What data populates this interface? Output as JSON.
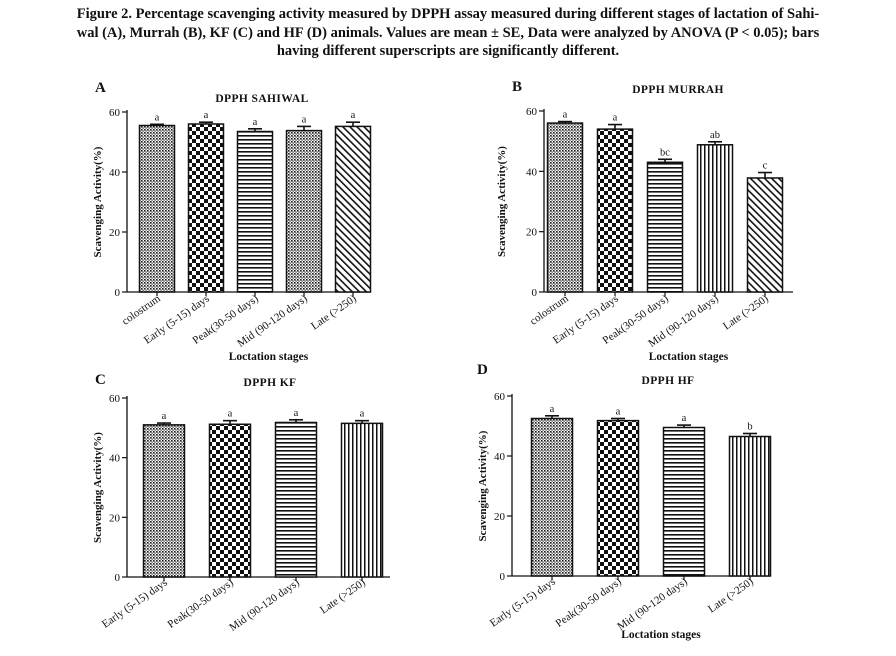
{
  "caption": {
    "line1": "Figure 2. Percentage scavenging activity measured by DPPH assay measured during different stages of lactation of Sahi-",
    "line2": "wal (A), Murrah (B), KF (C) and HF (D) animals. Values are mean ± SE, Data were analyzed by ANOVA (P < 0.05); bars",
    "line3": "having different superscripts are significantly different."
  },
  "chart_data": [
    {
      "panel": "A",
      "type": "bar",
      "title": "DPPH SAHIWAL",
      "xlabel": "Loctation stages",
      "ylabel": "Scavenging Activity(%)",
      "ylim": [
        0,
        60
      ],
      "yticks": [
        "0",
        "20",
        "40",
        "60"
      ],
      "categories": [
        "colostrum",
        "Early (5-15) days",
        "Peak(30-50 days)",
        "Mid (90-120 days)",
        "Late (>250)"
      ],
      "values": [
        55.5,
        56.0,
        53.5,
        53.8,
        55.2
      ],
      "errors": [
        0.4,
        0.6,
        0.9,
        1.4,
        1.4
      ],
      "superscripts": [
        "a",
        "a",
        "a",
        "a",
        "a"
      ],
      "patterns": [
        "dots",
        "checker",
        "hstripe",
        "dots",
        "diag"
      ]
    },
    {
      "panel": "B",
      "type": "bar",
      "title": "DPPH MURRAH",
      "xlabel": "Loctation stages",
      "ylabel": "Scavenging Activity(%)",
      "ylim": [
        0,
        60
      ],
      "yticks": [
        "0",
        "20",
        "40",
        "60"
      ],
      "categories": [
        "colostrum",
        "Early (5-15) days",
        "Peak(30-50 days)",
        "Mid (90-120 days)",
        "Late (>250)"
      ],
      "values": [
        56.0,
        54.0,
        43.0,
        48.8,
        37.8
      ],
      "errors": [
        0.5,
        1.5,
        1.0,
        1.0,
        1.8
      ],
      "superscripts": [
        "a",
        "a",
        "bc",
        "ab",
        "c"
      ],
      "patterns": [
        "dots",
        "checker",
        "hstripe",
        "vstripe",
        "diag"
      ]
    },
    {
      "panel": "C",
      "type": "bar",
      "title": "DPPH KF",
      "xlabel": "",
      "ylabel": "Scavenging Activity(%)",
      "ylim": [
        0,
        60
      ],
      "yticks": [
        "0",
        "20",
        "40",
        "60"
      ],
      "categories": [
        "Early (5-15) days",
        "Peak(30-50 days)",
        "Mid (90-120 days)",
        "Late (>250)"
      ],
      "values": [
        51.0,
        51.2,
        51.8,
        51.5
      ],
      "errors": [
        0.6,
        1.2,
        0.9,
        0.9
      ],
      "superscripts": [
        "a",
        "a",
        "a",
        "a"
      ],
      "patterns": [
        "dots",
        "checker",
        "hstripe",
        "vstripe"
      ]
    },
    {
      "panel": "D",
      "type": "bar",
      "title": "DPPH HF",
      "xlabel": "Loctation stages",
      "ylabel": "Scavenging Activity(%)",
      "ylim": [
        0,
        60
      ],
      "yticks": [
        "0",
        "20",
        "40",
        "60"
      ],
      "categories": [
        "Early (5-15) days",
        "Peak(30-50 days)",
        "Mid (90-120 days)",
        "Late (>250)"
      ],
      "values": [
        52.5,
        51.8,
        49.5,
        46.5
      ],
      "errors": [
        0.9,
        0.7,
        0.8,
        1.0
      ],
      "superscripts": [
        "a",
        "a",
        "a",
        "b"
      ],
      "patterns": [
        "dots",
        "checker",
        "hstripe",
        "vstripe"
      ]
    }
  ]
}
